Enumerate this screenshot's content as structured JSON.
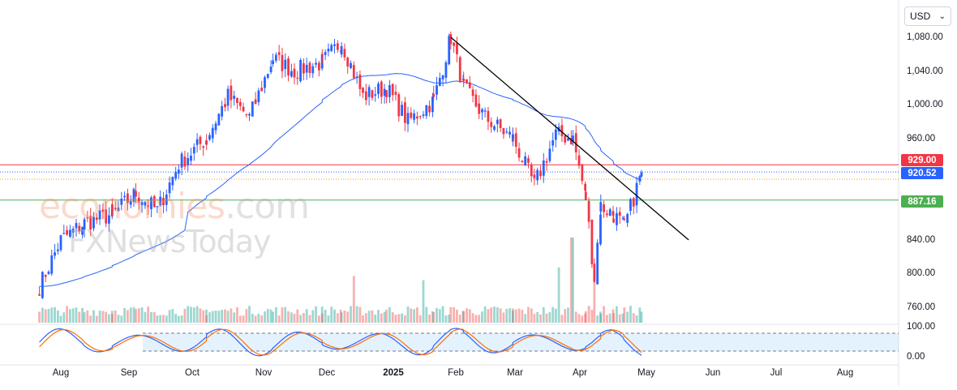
{
  "currency": {
    "label": "USD"
  },
  "watermark": {
    "line1a": "economies",
    "line1b": ".com",
    "line2": "FXNewsToday"
  },
  "price_badges": [
    {
      "value": "929.00",
      "color": "#f23645"
    },
    {
      "value": "920.52",
      "color": "#2962ff"
    },
    {
      "value": "887.16",
      "color": "#4caf50"
    }
  ],
  "chart_data": {
    "type": "candlestick",
    "y_ticks": [
      "1,080.00",
      "1,040.00",
      "1,000.00",
      "960.00",
      "840.00",
      "800.00",
      "760.00"
    ],
    "x_ticks": [
      "Aug",
      "Sep",
      "Oct",
      "Nov",
      "Dec",
      "2025",
      "Feb",
      "Mar",
      "Apr",
      "May",
      "Jun",
      "Jul",
      "Aug"
    ],
    "oscillator_ticks": [
      "100.00",
      "0.00"
    ],
    "colors": {
      "up": "#2962ff",
      "down": "#f23645",
      "ma": "#2962ff",
      "trendline": "#000000",
      "resistance": "#f23645",
      "support": "#4caf50"
    },
    "anchors": [
      [
        "2024-07-22",
        785
      ],
      [
        "2024-08-01",
        840
      ],
      [
        "2024-08-12",
        860
      ],
      [
        "2024-08-25",
        870
      ],
      [
        "2024-09-05",
        895
      ],
      [
        "2024-09-15",
        875
      ],
      [
        "2024-09-25",
        930
      ],
      [
        "2024-10-08",
        960
      ],
      [
        "2024-10-18",
        1010
      ],
      [
        "2024-10-28",
        985
      ],
      [
        "2024-11-08",
        1055
      ],
      [
        "2024-11-18",
        1040
      ],
      [
        "2024-12-01",
        1050
      ],
      [
        "2024-12-10",
        1075
      ],
      [
        "2024-12-20",
        1010
      ],
      [
        "2024-12-31",
        1020
      ],
      [
        "2025-01-10",
        980
      ],
      [
        "2025-01-22",
        1005
      ],
      [
        "2025-01-30",
        1080
      ],
      [
        "2025-02-05",
        1020
      ],
      [
        "2025-02-15",
        985
      ],
      [
        "2025-02-28",
        960
      ],
      [
        "2025-03-10",
        905
      ],
      [
        "2025-03-20",
        965
      ],
      [
        "2025-03-28",
        960
      ],
      [
        "2025-04-03",
        890
      ],
      [
        "2025-04-07",
        795
      ],
      [
        "2025-04-10",
        880
      ],
      [
        "2025-04-16",
        870
      ],
      [
        "2025-04-21",
        855
      ],
      [
        "2025-04-29",
        920
      ]
    ],
    "volume_spikes": [
      [
        "2024-12-16",
        0.55
      ],
      [
        "2025-01-17",
        0.5
      ],
      [
        "2025-03-21",
        0.65
      ],
      [
        "2025-03-28",
        1.0
      ],
      [
        "2025-04-07",
        0.6
      ]
    ],
    "levels": {
      "resistance": 929.0,
      "last": 920.52,
      "support": 887.16,
      "last_line": 912
    },
    "trendline": [
      [
        "2025-01-30",
        1080
      ],
      [
        "2025-05-21",
        840
      ]
    ]
  }
}
